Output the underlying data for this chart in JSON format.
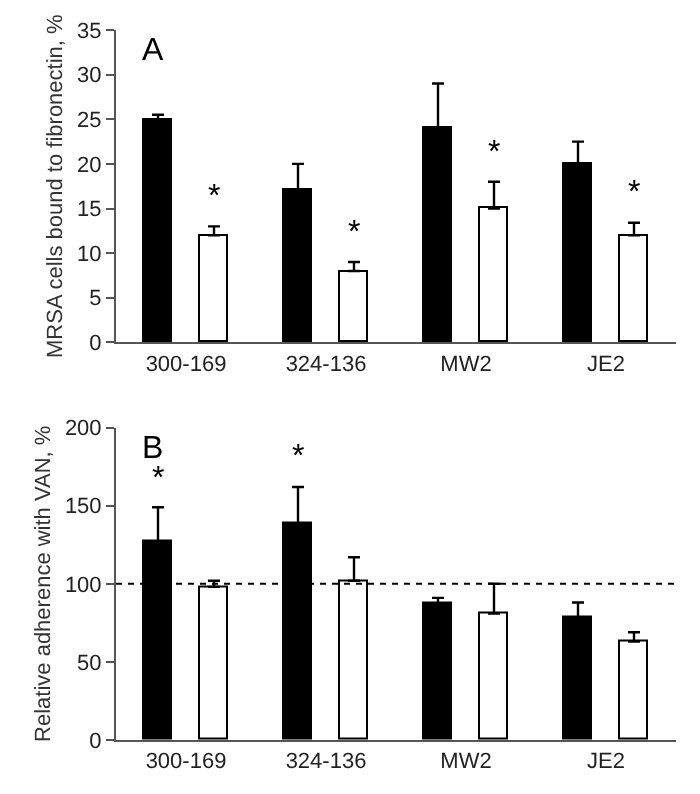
{
  "chart_data": [
    {
      "type": "bar",
      "title": "A",
      "ylabel": "MRSA cells bound to fibronectin, %",
      "categories": [
        "300-169",
        "324-136",
        "MW2",
        "JE2"
      ],
      "series": [
        {
          "color": "#000000",
          "values": [
            25,
            17,
            24,
            20
          ],
          "errors": [
            [
              25,
              25.5
            ],
            [
              17,
              20
            ],
            [
              24,
              29
            ],
            [
              20,
              22.5
            ]
          ]
        },
        {
          "color": "#ffffff",
          "values": [
            12,
            8,
            15,
            12
          ],
          "errors": [
            [
              12,
              13
            ],
            [
              8,
              9
            ],
            [
              15,
              18
            ],
            [
              12,
              13.4
            ]
          ]
        }
      ],
      "ylim": [
        0,
        35
      ],
      "yticks": [
        0,
        5,
        10,
        15,
        20,
        25,
        30,
        35
      ],
      "annotations": [
        "*",
        "*",
        "*",
        "*"
      ]
    },
    {
      "type": "bar",
      "title": "B",
      "ylabel": "Relative adherence with VAN, %",
      "categories": [
        "300-169",
        "324-136",
        "MW2",
        "JE2"
      ],
      "series": [
        {
          "color": "#000000",
          "values": [
            127,
            138,
            87,
            78
          ],
          "errors": [
            [
              127,
              149
            ],
            [
              138,
              162
            ],
            [
              87,
              91
            ],
            [
              78,
              88
            ]
          ]
        },
        {
          "color": "#ffffff",
          "values": [
            98,
            102,
            81,
            63
          ],
          "errors": [
            [
              98,
              102
            ],
            [
              102,
              117
            ],
            [
              81,
              100
            ],
            [
              63,
              69
            ]
          ]
        }
      ],
      "ylim": [
        0,
        200
      ],
      "yticks": [
        0,
        50,
        100,
        150,
        200
      ],
      "ref_lines": [
        {
          "axis": "y",
          "value": 100,
          "line_style": "dotted",
          "color": "#000000"
        }
      ],
      "annotations": [
        "*",
        "*"
      ]
    }
  ]
}
